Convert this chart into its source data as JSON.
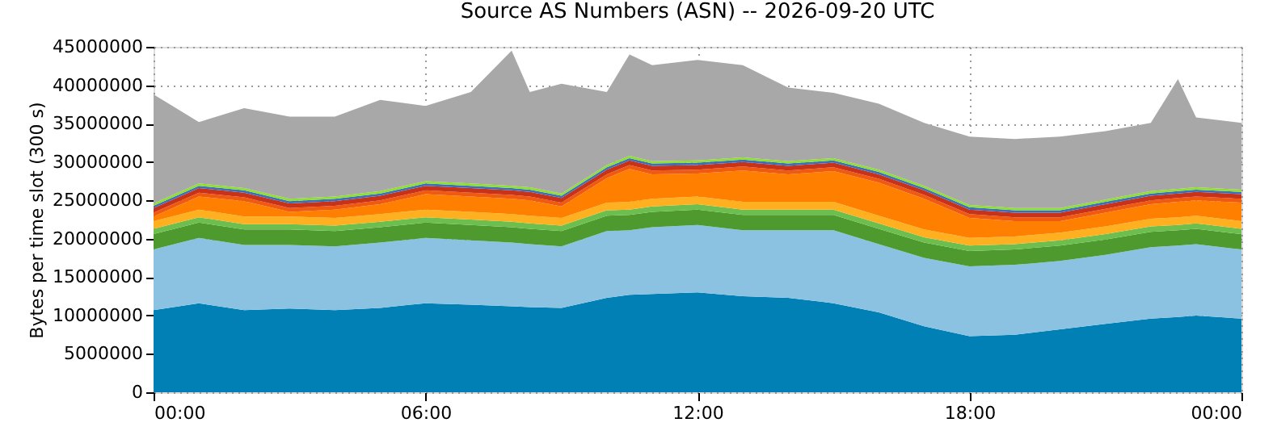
{
  "chart_data": {
    "type": "area",
    "stacked": true,
    "title": "Source AS Numbers (ASN) -- 2026-09-20 UTC",
    "ylabel": "Bytes per time slot (300 s)",
    "grid": true,
    "legend": false,
    "x": [
      0,
      1,
      2,
      3,
      4,
      5,
      6,
      7,
      7.9,
      8.3,
      9,
      10,
      10.5,
      11,
      12,
      13,
      14,
      15,
      16,
      17,
      18,
      19,
      20,
      21,
      22,
      22.6,
      23,
      24
    ],
    "xlim": [
      0,
      24
    ],
    "xticks": [
      {
        "value": 0,
        "label": "00:00"
      },
      {
        "value": 6,
        "label": "06:00"
      },
      {
        "value": 12,
        "label": "12:00"
      },
      {
        "value": 18,
        "label": "18:00"
      },
      {
        "value": 24,
        "label": "00:00"
      }
    ],
    "ylim": [
      0,
      45000000
    ],
    "yticks": [
      0,
      5000000,
      10000000,
      15000000,
      20000000,
      25000000,
      30000000,
      35000000,
      40000000,
      45000000
    ],
    "series": [
      {
        "color": "#0080b4",
        "values": [
          10700000,
          11600000,
          10700000,
          10900000,
          10700000,
          11000000,
          11600000,
          11400000,
          11200000,
          11100000,
          11000000,
          12300000,
          12700000,
          12800000,
          13000000,
          12500000,
          12300000,
          11600000,
          10400000,
          8600000,
          7300000,
          7500000,
          8200000,
          8900000,
          9600000,
          9800000,
          10000000,
          9600000
        ]
      },
      {
        "color": "#8bc2e2",
        "values": [
          7900000,
          8500000,
          8500000,
          8300000,
          8300000,
          8500000,
          8500000,
          8400000,
          8300000,
          8200000,
          8000000,
          8700000,
          8400000,
          8700000,
          8800000,
          8600000,
          8800000,
          9500000,
          8900000,
          8900000,
          9100000,
          9100000,
          8900000,
          9000000,
          9300000,
          9300000,
          9300000,
          9000000
        ]
      },
      {
        "color": "#4e9a2e",
        "values": [
          2000000,
          2000000,
          2000000,
          2000000,
          2000000,
          2000000,
          2000000,
          2000000,
          2000000,
          2000000,
          2000000,
          2000000,
          2000000,
          2000000,
          2000000,
          2000000,
          2000000,
          2000000,
          2000000,
          2000000,
          2000000,
          2000000,
          2000000,
          2000000,
          2000000,
          2000000,
          2000000,
          2000000
        ]
      },
      {
        "color": "#6cbf4f",
        "values": [
          700000,
          700000,
          700000,
          700000,
          700000,
          700000,
          700000,
          700000,
          700000,
          700000,
          700000,
          700000,
          700000,
          700000,
          700000,
          700000,
          700000,
          700000,
          700000,
          700000,
          700000,
          700000,
          700000,
          700000,
          700000,
          700000,
          700000,
          700000
        ]
      },
      {
        "color": "#ffb020",
        "values": [
          1000000,
          1000000,
          1000000,
          1000000,
          1000000,
          1000000,
          1000000,
          1000000,
          1000000,
          1000000,
          1000000,
          1000000,
          1000000,
          1000000,
          1000000,
          1000000,
          1000000,
          1000000,
          1000000,
          1000000,
          1000000,
          1000000,
          1000000,
          1000000,
          1000000,
          1000000,
          1000000,
          1000000
        ]
      },
      {
        "color": "#ff8000",
        "values": [
          600000,
          1700000,
          2000000,
          600000,
          1100000,
          1300000,
          2000000,
          2000000,
          2000000,
          2000000,
          1500000,
          3200000,
          4300000,
          3200000,
          3000000,
          4100000,
          3600000,
          4000000,
          4300000,
          4000000,
          2600000,
          2000000,
          1500000,
          1800000,
          1900000,
          2000000,
          2000000,
          2400000
        ]
      },
      {
        "color": "#f05a10",
        "values": [
          500000,
          500000,
          500000,
          500000,
          500000,
          500000,
          500000,
          500000,
          500000,
          500000,
          500000,
          500000,
          500000,
          500000,
          500000,
          500000,
          500000,
          500000,
          500000,
          500000,
          500000,
          500000,
          500000,
          500000,
          500000,
          500000,
          500000,
          500000
        ]
      },
      {
        "color": "#c83218",
        "values": [
          600000,
          600000,
          600000,
          600000,
          600000,
          600000,
          600000,
          600000,
          600000,
          600000,
          600000,
          600000,
          600000,
          600000,
          600000,
          600000,
          600000,
          600000,
          600000,
          600000,
          600000,
          600000,
          600000,
          600000,
          600000,
          600000,
          600000,
          600000
        ]
      },
      {
        "color": "#3a6fc0",
        "values": [
          300000,
          300000,
          300000,
          300000,
          300000,
          300000,
          300000,
          300000,
          300000,
          300000,
          300000,
          300000,
          300000,
          300000,
          300000,
          300000,
          300000,
          300000,
          300000,
          300000,
          300000,
          300000,
          300000,
          300000,
          300000,
          300000,
          300000,
          300000
        ]
      },
      {
        "color": "#8fe02c",
        "values": [
          300000,
          300000,
          300000,
          300000,
          300000,
          300000,
          300000,
          300000,
          300000,
          300000,
          300000,
          300000,
          300000,
          300000,
          300000,
          300000,
          300000,
          300000,
          300000,
          300000,
          300000,
          300000,
          300000,
          300000,
          300000,
          300000,
          300000,
          300000
        ]
      },
      {
        "color": "#a8a8a8",
        "values": [
          14200000,
          8000000,
          10400000,
          10700000,
          10400000,
          11900000,
          9800000,
          11900000,
          17600000,
          12400000,
          14300000,
          9500000,
          13200000,
          12500000,
          13100000,
          12000000,
          9600000,
          8500000,
          8600000,
          8200000,
          8900000,
          9000000,
          9300000,
          8900000,
          8900000,
          14300000,
          9100000,
          8700000
        ]
      }
    ]
  }
}
